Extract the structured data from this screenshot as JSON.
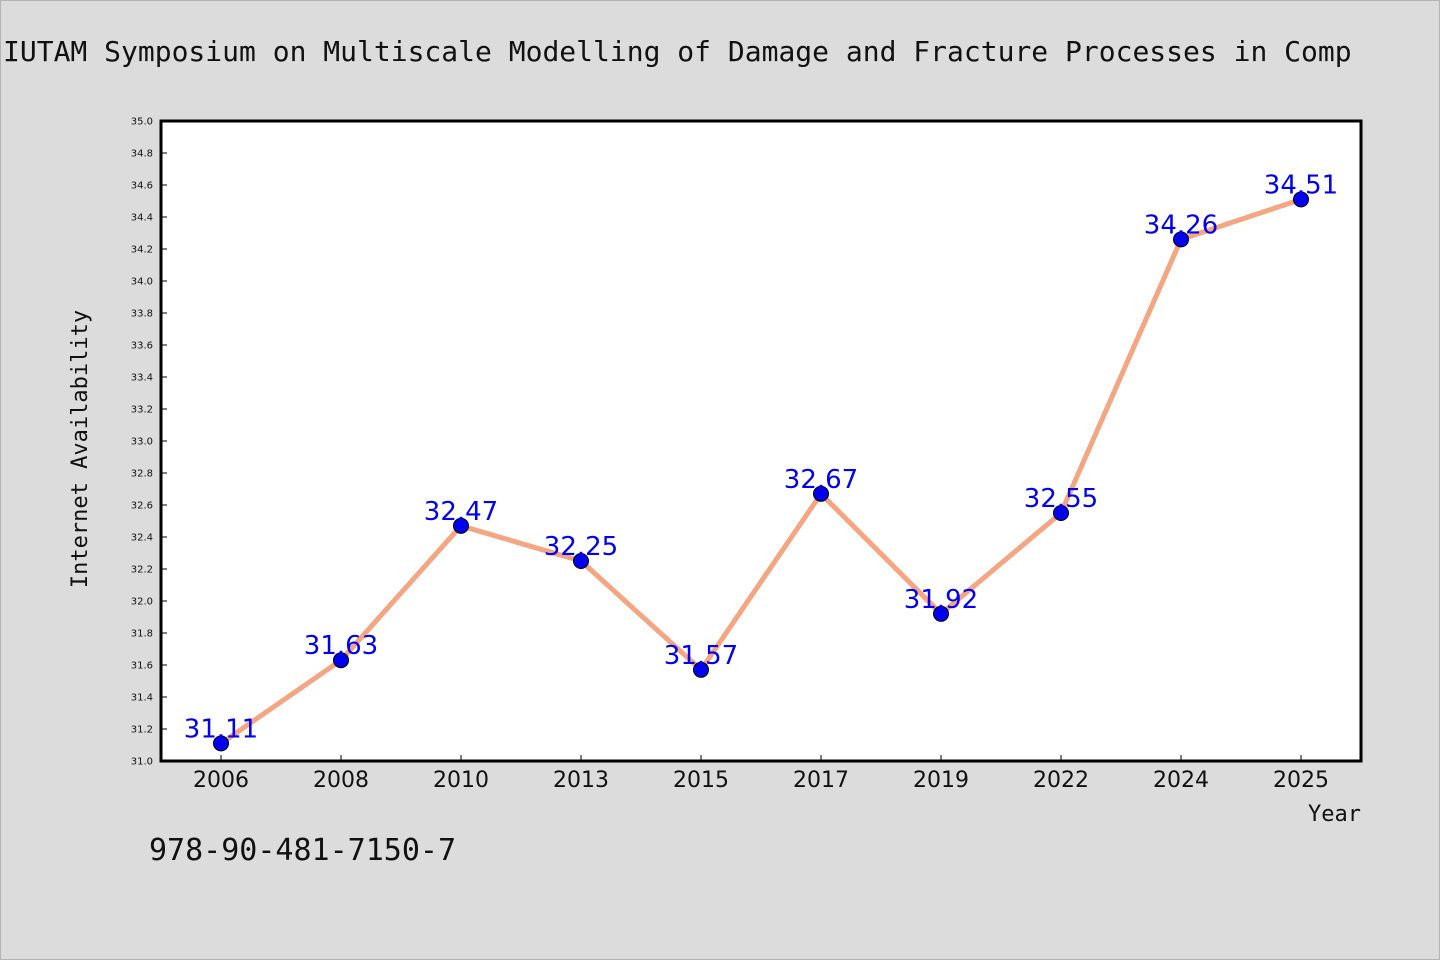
{
  "chart_data": {
    "type": "line",
    "title": "IUTAM Symposium on Multiscale Modelling of Damage and Fracture Processes in Comp",
    "xlabel": "Year",
    "ylabel": "Internet Availability",
    "categories": [
      "2006",
      "2008",
      "2010",
      "2013",
      "2015",
      "2017",
      "2019",
      "2022",
      "2024",
      "2025"
    ],
    "values": [
      31.11,
      31.63,
      32.47,
      32.25,
      31.57,
      32.67,
      31.92,
      32.55,
      34.26,
      34.51
    ],
    "ylim": [
      31.0,
      35.0
    ],
    "ytick_step": 0.2,
    "grid": false,
    "line_color": "#f4a582",
    "marker_color": "#0000ee",
    "label_color": "#0000ee"
  },
  "footer": {
    "isbn": "978-90-481-7150-7"
  }
}
